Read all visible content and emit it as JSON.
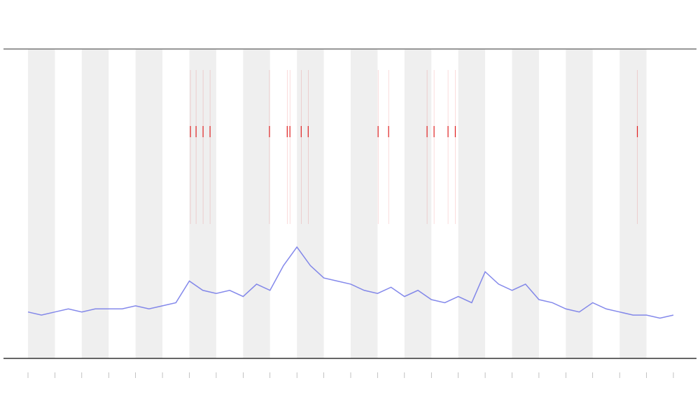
{
  "chart_data": {
    "type": "line",
    "xlim": [
      0,
      24
    ],
    "ylim": [
      0,
      1
    ],
    "x": [
      0,
      0.5,
      1,
      1.5,
      2,
      2.5,
      3,
      3.5,
      4,
      4.5,
      5,
      5.5,
      6,
      6.5,
      7,
      7.5,
      8,
      8.5,
      9,
      9.5,
      10,
      10.5,
      11,
      11.5,
      12,
      12.5,
      13,
      13.5,
      14,
      14.5,
      15,
      15.5,
      16,
      16.5,
      17,
      17.5,
      18,
      18.5,
      19,
      19.5,
      20,
      20.5,
      21,
      21.5,
      22,
      22.5,
      23,
      23.5,
      24
    ],
    "series": [
      {
        "color": "#6f74e8",
        "values": [
          0.15,
          0.14,
          0.15,
          0.16,
          0.15,
          0.16,
          0.16,
          0.16,
          0.17,
          0.16,
          0.17,
          0.18,
          0.25,
          0.22,
          0.21,
          0.22,
          0.2,
          0.24,
          0.22,
          0.3,
          0.36,
          0.3,
          0.26,
          0.25,
          0.24,
          0.22,
          0.21,
          0.23,
          0.2,
          0.22,
          0.19,
          0.18,
          0.2,
          0.18,
          0.28,
          0.24,
          0.22,
          0.24,
          0.19,
          0.18,
          0.16,
          0.15,
          0.18,
          0.16,
          0.15,
          0.14,
          0.14,
          0.13,
          0.14
        ]
      }
    ],
    "events": {
      "color": "#e02020",
      "x": [
        6.04,
        6.25,
        6.51,
        6.77,
        8.98,
        9.64,
        9.74,
        10.16,
        10.42,
        13.02,
        13.41,
        14.84,
        15.1,
        15.62,
        15.89,
        22.66
      ]
    }
  }
}
